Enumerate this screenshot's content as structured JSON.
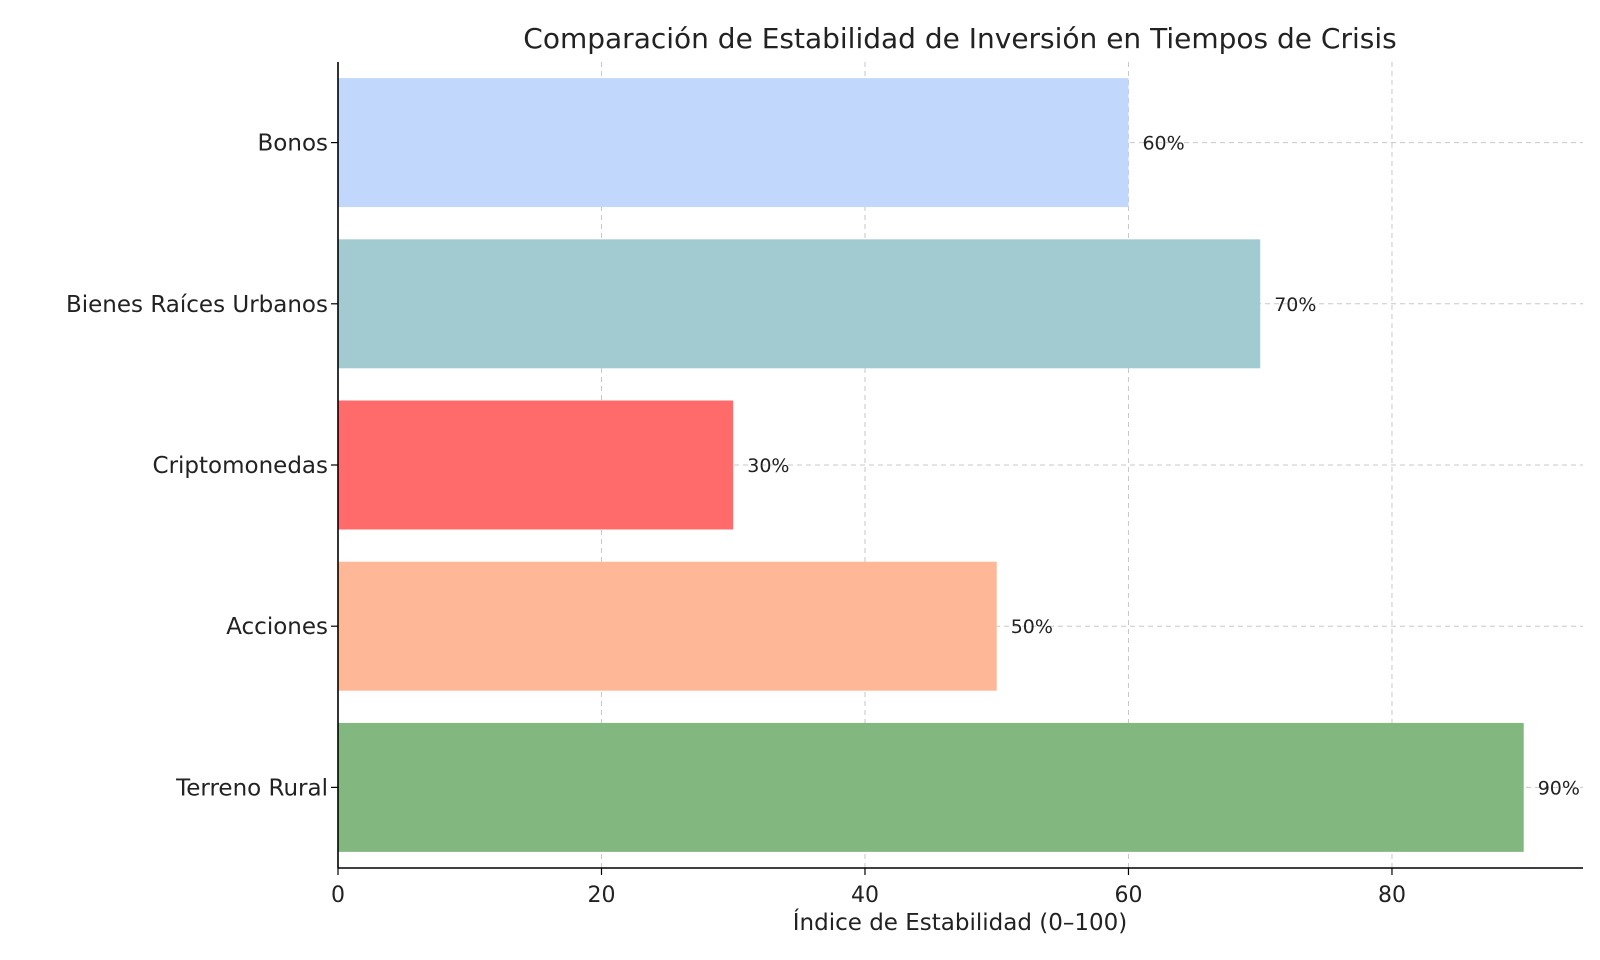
{
  "chart_data": {
    "type": "bar",
    "orientation": "horizontal",
    "title": "Comparación de Estabilidad de Inversión en Tiempos de Crisis",
    "xlabel": "Índice de Estabilidad (0–100)",
    "ylabel": "",
    "xlim": [
      0,
      94.5
    ],
    "xticks": [
      0,
      20,
      40,
      60,
      80
    ],
    "grid": true,
    "categories": [
      "Bonos",
      "Bienes Raíces Urbanos",
      "Criptomonedas",
      "Acciones",
      "Terreno Rural"
    ],
    "values": [
      60,
      70,
      30,
      50,
      90
    ],
    "data_labels": [
      "60%",
      "70%",
      "30%",
      "50%",
      "90%"
    ],
    "colors": [
      "#c1d8fc",
      "#a2cbd1",
      "#ff6b6b",
      "#ffb897",
      "#82b77f"
    ]
  }
}
